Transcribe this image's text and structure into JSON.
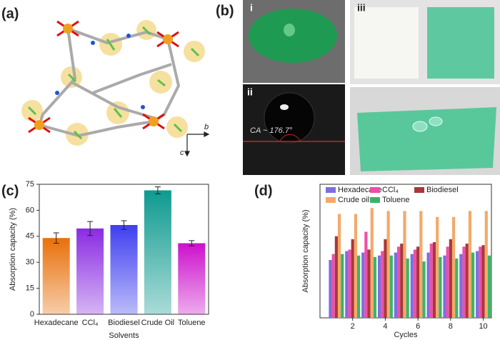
{
  "panel_labels": [
    "(a)",
    "(b)",
    "(c)",
    "(d)"
  ],
  "photo_labels": [
    "i",
    "ii",
    "iii"
  ],
  "contact_angle": "CA ~ 176.7°",
  "crystal_axes": [
    "b",
    "c"
  ],
  "chart_data": [
    {
      "type": "bar",
      "xlabel": "Solvents",
      "ylabel": "Absorption capacity (%)",
      "categories": [
        "Hexadecane",
        "CCl₄",
        "Biodiesel",
        "Crude Oil",
        "Toluene"
      ],
      "values": [
        44,
        49.5,
        51.5,
        71.5,
        41
      ],
      "errors": [
        3,
        4,
        2.5,
        2,
        1.5
      ],
      "colors": [
        "#e8700a",
        "#8a2be2",
        "#3e3ef0",
        "#0e9a8f",
        "#cc11cc"
      ],
      "ylim": [
        0,
        75
      ],
      "yticks": [
        0,
        15,
        30,
        45,
        60,
        75
      ]
    },
    {
      "type": "grouped-bar",
      "xlabel": "Cycles",
      "ylabel": "Absorption capacity (%)",
      "x": [
        1,
        2,
        3,
        4,
        5,
        6,
        7,
        8,
        9,
        10
      ],
      "xlim": [
        0,
        10.5
      ],
      "xticks": [
        2,
        4,
        6,
        8,
        10
      ],
      "ylim": [
        0,
        90
      ],
      "series": [
        {
          "name": "Hexadecane",
          "color": "#7b6fe0",
          "values": [
            39,
            45,
            44,
            42,
            44,
            43,
            44,
            42,
            43,
            45
          ]
        },
        {
          "name": "CCl₄",
          "color": "#ee4fa8",
          "values": [
            43,
            46,
            58,
            45,
            48,
            46,
            50,
            48,
            48,
            48
          ]
        },
        {
          "name": "Biodiesel",
          "color": "#a83838",
          "values": [
            55,
            53,
            46,
            53,
            50,
            48,
            51,
            53,
            50,
            49
          ]
        },
        {
          "name": "Crude oil",
          "color": "#f2aa6a",
          "values": [
            70,
            70,
            74,
            72,
            72,
            72,
            68,
            68,
            72,
            72
          ]
        },
        {
          "name": "Toluene",
          "color": "#3cb36a",
          "values": [
            43,
            42,
            41,
            42,
            40,
            38,
            41,
            40,
            44,
            42
          ]
        }
      ]
    }
  ]
}
